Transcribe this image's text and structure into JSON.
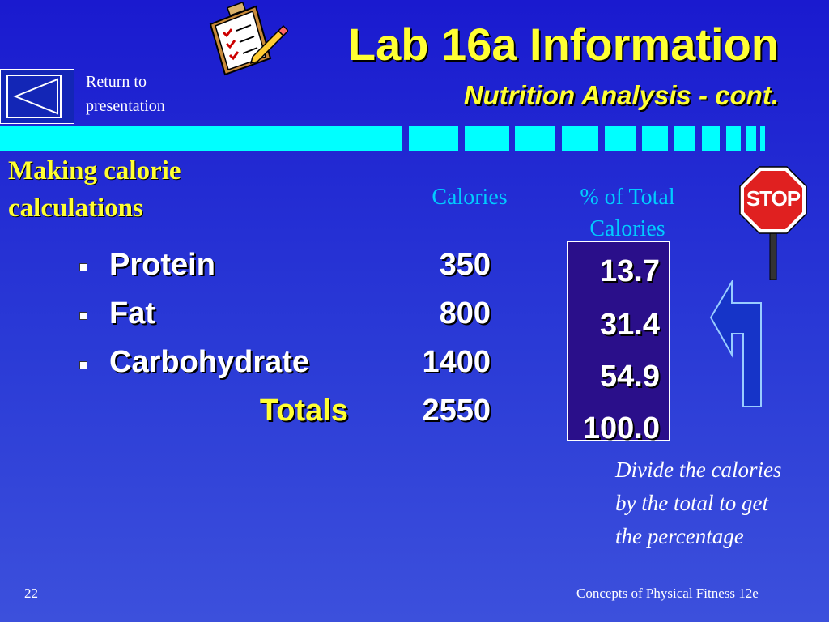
{
  "header": {
    "title": "Lab 16a Information",
    "subtitle": "Nutrition Analysis - cont."
  },
  "nav": {
    "return_label_line1": "Return to",
    "return_label_line2": "presentation"
  },
  "section": {
    "title_line1": "Making calorie",
    "title_line2": "calculations"
  },
  "table": {
    "col_calories": "Calories",
    "col_percent_line1": "% of Total",
    "col_percent_line2": "Calories",
    "rows": [
      {
        "label": "Protein",
        "calories": "350",
        "percent": "13.7"
      },
      {
        "label": "Fat",
        "calories": "800",
        "percent": "31.4"
      },
      {
        "label": "Carbohydrate",
        "calories": "1400",
        "percent": "54.9"
      }
    ],
    "totals_label": "Totals",
    "totals_calories": "2550",
    "totals_percent": "100.0"
  },
  "stop_sign_text": "STOP",
  "note": {
    "line1": "Divide the calories",
    "line2": "by the total to get",
    "line3": "the percentage"
  },
  "footer": {
    "page_number": "22",
    "book_title": "Concepts of Physical Fitness 12e"
  },
  "colors": {
    "background": "#2230d0",
    "title": "#ffff33",
    "accent_bar": "#00ffff",
    "column_header": "#00ccff",
    "percent_box": "#2a0f8a"
  },
  "icons": [
    "clipboard-icon",
    "back-triangle-icon",
    "stop-sign-icon",
    "turn-arrow-icon"
  ]
}
